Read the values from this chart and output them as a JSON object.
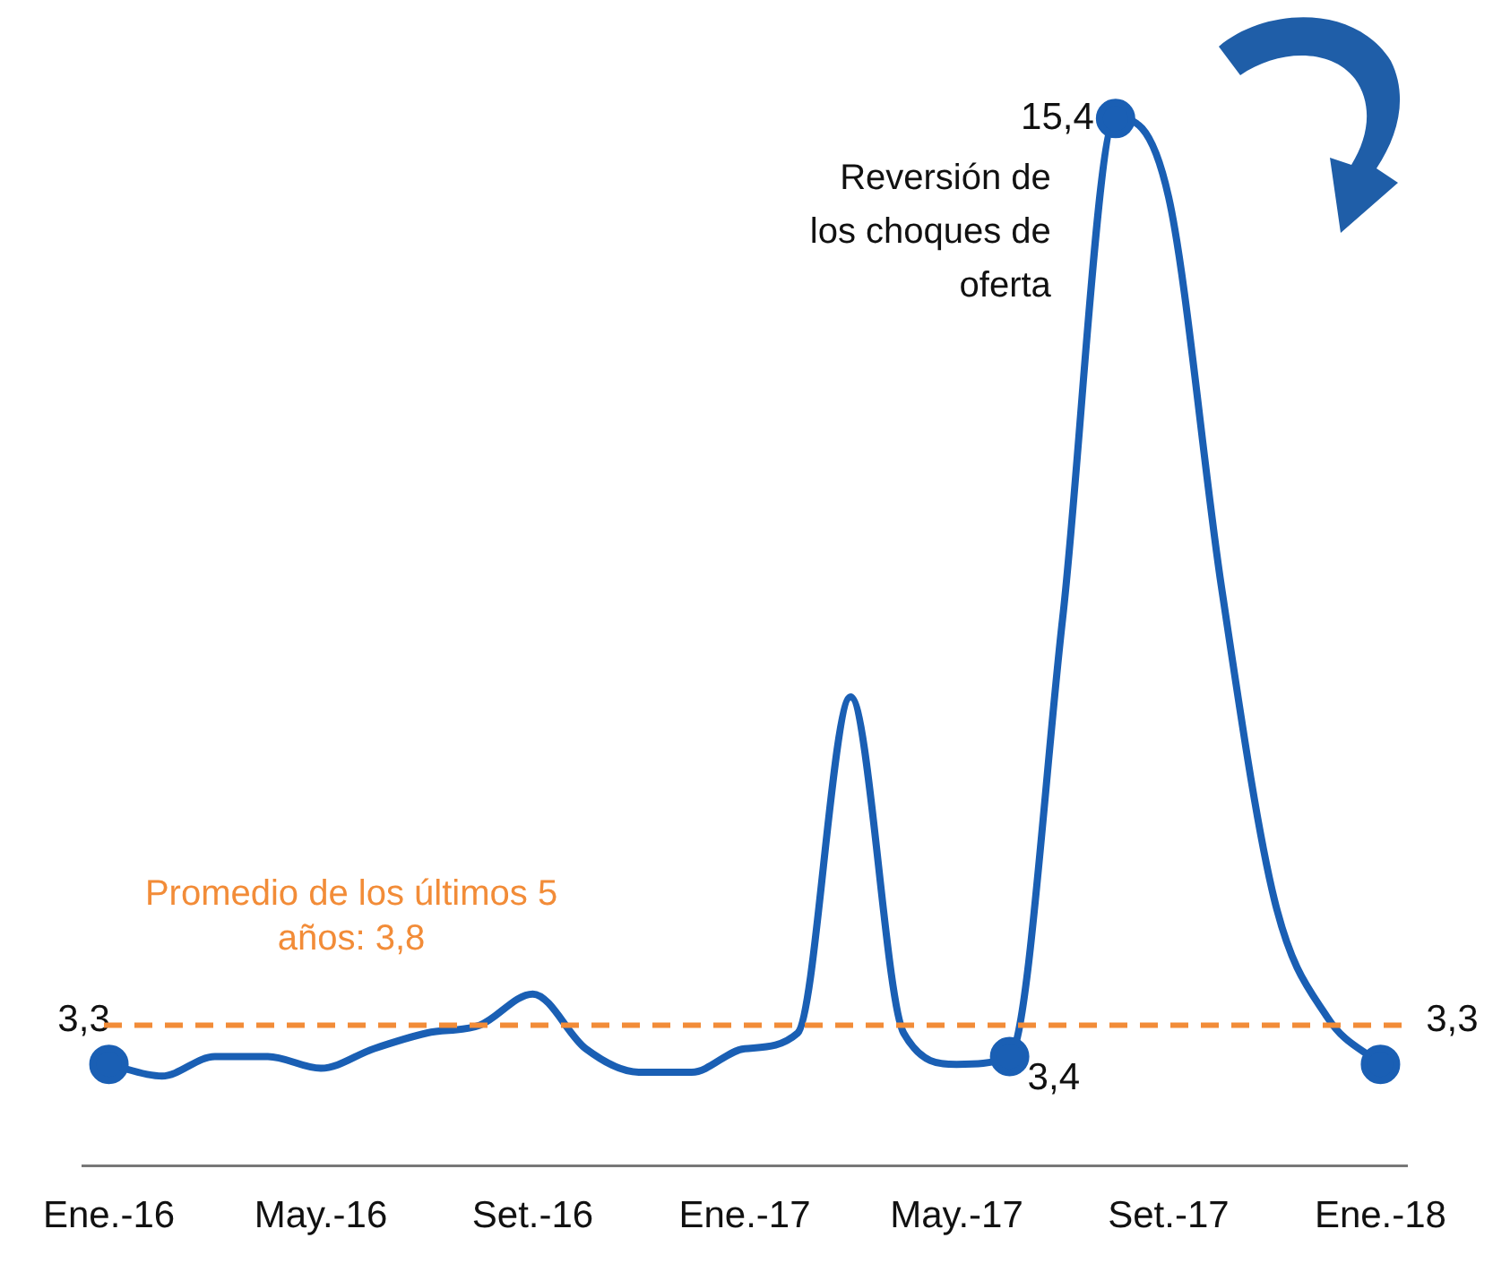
{
  "chart_data": {
    "type": "line",
    "categories": [
      "Ene.-16",
      null,
      null,
      null,
      "May.-16",
      null,
      null,
      null,
      "Set.-16",
      null,
      null,
      null,
      "Ene.-17",
      null,
      null,
      null,
      "May.-17",
      null,
      null,
      null,
      "Set.-17",
      null,
      null,
      null,
      "Ene.-18"
    ],
    "series": [
      {
        "color": "#1a5fb4",
        "values": [
          3.3,
          3.15,
          3.4,
          3.4,
          3.25,
          3.5,
          3.7,
          3.8,
          4.2,
          3.5,
          3.2,
          3.2,
          3.5,
          3.7,
          8.0,
          3.7,
          3.3,
          3.4,
          9.0,
          15.4,
          14.4,
          9.4,
          5.4,
          3.9,
          3.3
        ],
        "value_labels": [
          "3,3",
          null,
          null,
          null,
          null,
          null,
          null,
          null,
          null,
          null,
          null,
          null,
          null,
          null,
          null,
          null,
          null,
          "3,4",
          null,
          "15,4",
          null,
          null,
          null,
          null,
          "3,3"
        ]
      }
    ],
    "tick_labels": "x",
    "grid": false,
    "legend": false,
    "line_style": "solid",
    "ref_lines": [
      {
        "axis": "y",
        "value": 3.8,
        "label": "Promedio de los últimos 5 años: 3,8",
        "color": "#f28c38",
        "line_style": "dashed"
      }
    ],
    "annotations": [
      "Reversión de los choques de oferta"
    ]
  }
}
